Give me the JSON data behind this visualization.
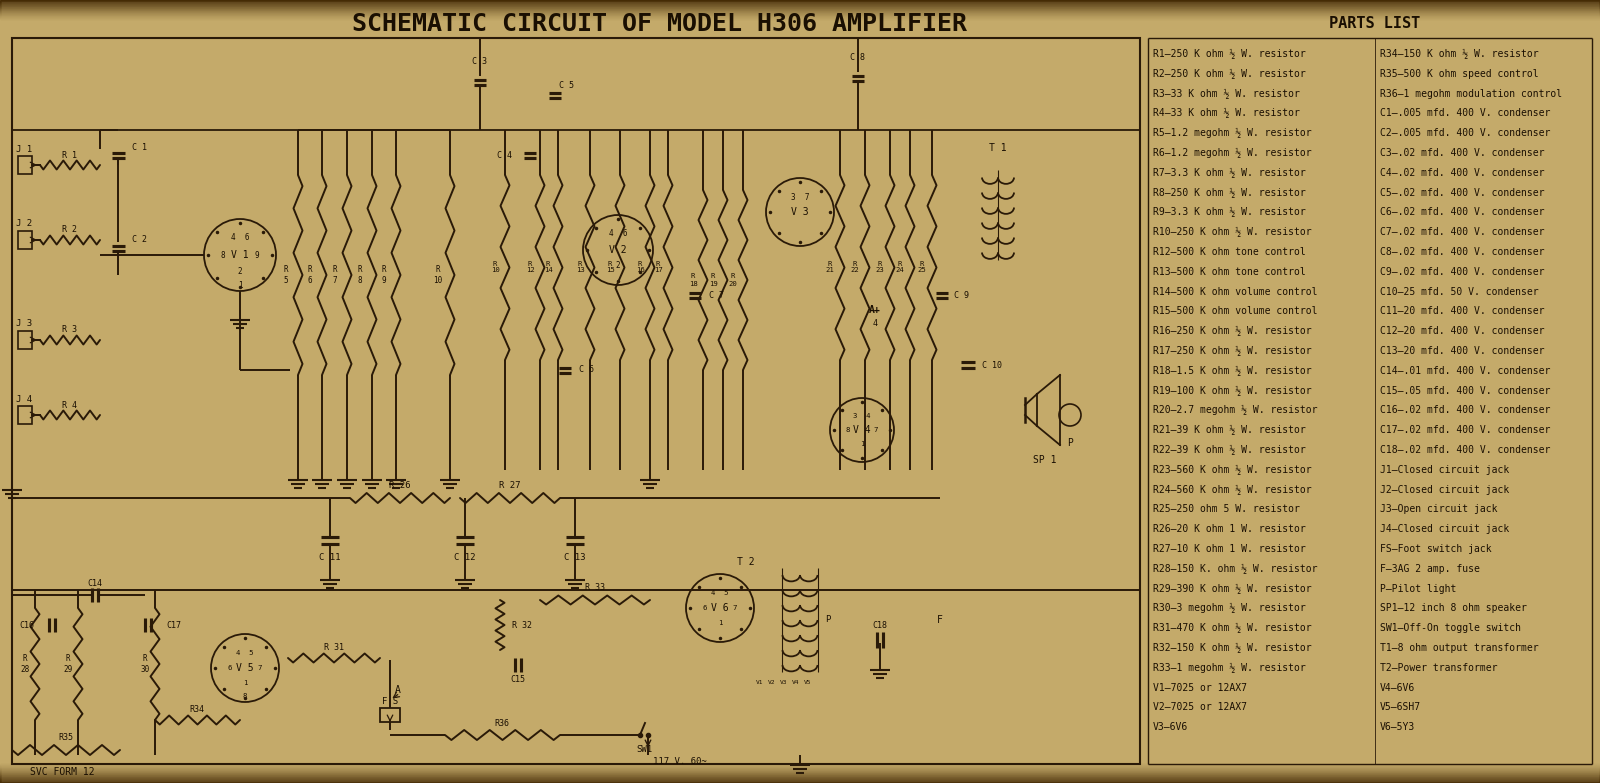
{
  "title": "SCHEMATIC CIRCUIT OF MODEL H306 AMPLIFIER",
  "bg_color": "#c4aa6a",
  "line_color": "#2a1a08",
  "text_color": "#1a0f02",
  "parts_list_title": "PARTS LIST",
  "parts_col1": [
    "R1—250 K ohm ½ W. resistor",
    "R2—250 K ohm ½ W. resistor",
    "R3—33 K ohm ½ W. resistor",
    "R4—33 K ohm ½ W. resistor",
    "R5—1.2 megohm ½ W. resistor",
    "R6—1.2 megohm ½ W. resistor",
    "R7—3.3 K ohm ½ W. resistor",
    "R8—250 K ohm ½ W. resistor",
    "R9—3.3 K ohm ½ W. resistor",
    "R10—250 K ohm ½ W. resistor",
    "R12—500 K ohm tone control",
    "R13—500 K ohm tone control",
    "R14—500 K ohm volume control",
    "R15—500 K ohm volume control",
    "R16—250 K ohm ½ W. resistor",
    "R17—250 K ohm ½ W. resistor",
    "R18—1.5 K ohm ½ W. resistor",
    "R19—100 K ohm ½ W. resistor",
    "R20—2.7 megohm ½ W. resistor",
    "R21—39 K ohm ½ W. resistor",
    "R22—39 K ohm ½ W. resistor",
    "R23—560 K ohm ½ W. resistor",
    "R24—560 K ohm ½ W. resistor",
    "R25—250 ohm 5 W. resistor",
    "R26—20 K ohm 1 W. resistor",
    "R27—10 K ohm 1 W. resistor",
    "R28—150 K. ohm ½ W. resistor",
    "R29—390 K ohm ½ W. resistor",
    "R30—3 megohm ½ W. resistor",
    "R31—470 K ohm ½ W. resistor",
    "R32—150 K ohm ½ W. resistor",
    "R33—1 megohm ½ W. resistor",
    "V1—7025 or 12AX7",
    "V2—7025 or 12AX7",
    "V3—6V6"
  ],
  "parts_col2": [
    "R34—150 K ohm ½ W. resistor",
    "R35—500 K ohm speed control",
    "R36—1 megohm modulation control",
    "C1—.005 mfd. 400 V. condenser",
    "C2—.005 mfd. 400 V. condenser",
    "C3—.02 mfd. 400 V. condenser",
    "C4—.02 mfd. 400 V. condenser",
    "C5—.02 mfd. 400 V. condenser",
    "C6—.02 mfd. 400 V. condenser",
    "C7—.02 mfd. 400 V. condenser",
    "C8—.02 mfd. 400 V. condenser",
    "C9—.02 mfd. 400 V. condenser",
    "C10—25 mfd. 50 V. condenser",
    "C11—20 mfd. 400 V. condenser",
    "C12—20 mfd. 400 V. condenser",
    "C13—20 mfd. 400 V. condenser",
    "C14—.01 mfd. 400 V. condenser",
    "C15—.05 mfd. 400 V. condenser",
    "C16—.02 mfd. 400 V. condenser",
    "C17—.02 mfd. 400 V. condenser",
    "C18—.02 mfd. 400 V. condenser",
    "J1—Closed circuit jack",
    "J2—Closed circuit jack",
    "J3—Open circuit jack",
    "J4—Closed circuit jack",
    "FS—Foot switch jack",
    "F—3AG 2 amp. fuse",
    "P—Pilot light",
    "SP1—12 inch 8 ohm speaker",
    "SW1—Off-On toggle switch",
    "T1—8 ohm output transformer",
    "T2—Power transformer",
    "V4—6V6",
    "V5—6SH7",
    "V6—5Y3"
  ],
  "svc_form": "SVC FORM 12"
}
